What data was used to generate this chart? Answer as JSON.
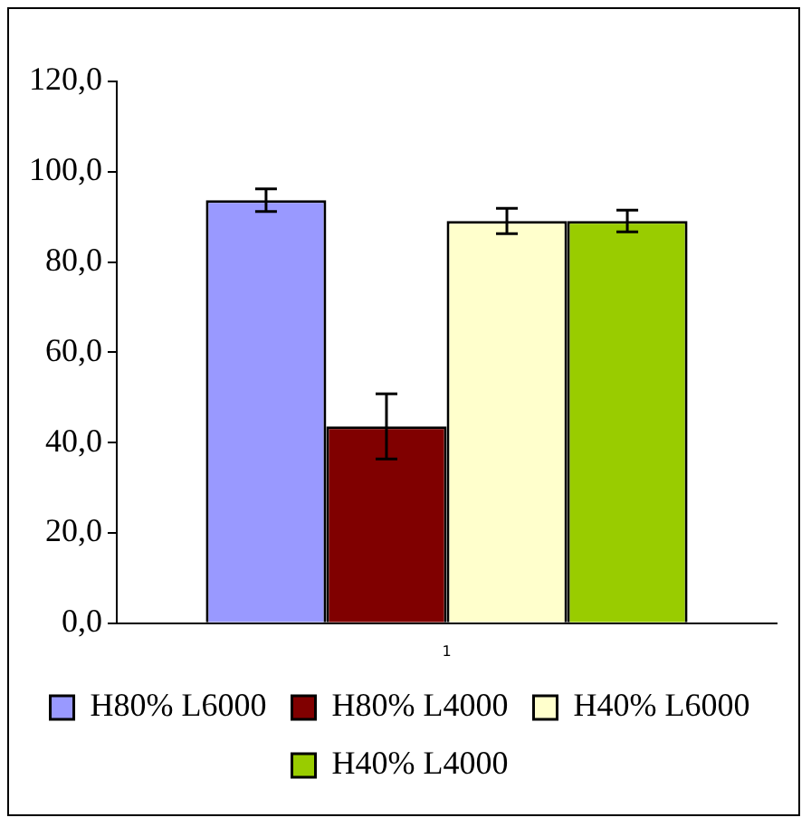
{
  "chart_data": {
    "type": "bar",
    "categories": [
      "1"
    ],
    "series": [
      {
        "name": "H80% L6000",
        "color": "#9999ff",
        "values": [
          93.7
        ],
        "errors": [
          2.5
        ]
      },
      {
        "name": "H80% L4000",
        "color": "#800000",
        "values": [
          43.6
        ],
        "errors": [
          7.2
        ]
      },
      {
        "name": "H40% L6000",
        "color": "#ffffcc",
        "values": [
          89.1
        ],
        "errors": [
          2.8
        ]
      },
      {
        "name": "H40% L4000",
        "color": "#99cc00",
        "values": [
          89.1
        ],
        "errors": [
          2.4
        ]
      }
    ],
    "ylim": [
      0,
      120
    ],
    "yticks": [
      {
        "value": 0,
        "label": "0,0"
      },
      {
        "value": 20,
        "label": "20,0"
      },
      {
        "value": 40,
        "label": "40,0"
      },
      {
        "value": 60,
        "label": "60,0"
      },
      {
        "value": 80,
        "label": "80,0"
      },
      {
        "value": 100,
        "label": "100,0"
      },
      {
        "value": 120,
        "label": "120,0"
      }
    ],
    "grid": false,
    "legend": "bottom"
  }
}
